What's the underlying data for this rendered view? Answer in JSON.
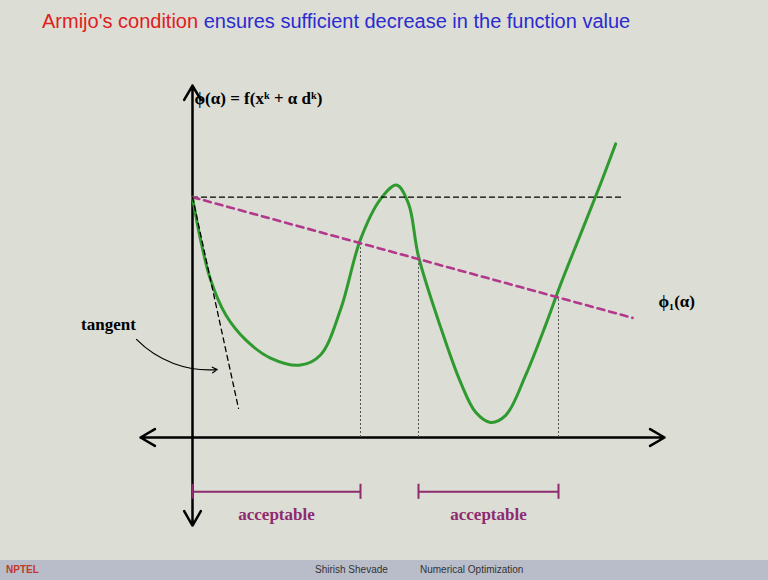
{
  "chart_data": {
    "type": "line",
    "title": "Armijo's condition ensures sufficient decrease in the function value",
    "title_highlight": "Armijo's condition",
    "tick_labels": false,
    "xlim": [
      -1.3,
      11.8
    ],
    "ylim": [
      -3.5,
      14
    ],
    "series": [
      {
        "color": "#2f9a2f",
        "line_style": "solid",
        "x": [
          0,
          0.2,
          0.45,
          0.83,
          1.33,
          1.95,
          2.7,
          3.2,
          3.7,
          4.2,
          4.7,
          5.1,
          5.4,
          5.65,
          6.2,
          6.7,
          7.08,
          7.45,
          7.83,
          8.33,
          8.83,
          9.2,
          9.7,
          10.2,
          10.58
        ],
        "values": [
          9.56,
          7.88,
          6.28,
          4.88,
          3.88,
          3.16,
          2.88,
          3.28,
          5.08,
          7.88,
          9.48,
          10.04,
          9.3,
          7.2,
          4.4,
          2.2,
          1.0,
          0.6,
          0.88,
          2.48,
          4.48,
          6.08,
          8.08,
          10.08,
          11.68
        ]
      },
      {
        "color": "#000000",
        "line_style": "dashed",
        "x": [
          0,
          10.8
        ],
        "values": [
          9.56,
          9.56
        ]
      },
      {
        "color": "#b2388c",
        "line_style": "dashed",
        "x": [
          0,
          11
        ],
        "values": [
          9.56,
          4.76
        ]
      },
      {
        "color": "#000000",
        "line_style": "dashed",
        "x": [
          0,
          1.15
        ],
        "values": [
          9.56,
          1.16
        ]
      }
    ],
    "boundaries": {
      "x": [
        4.2,
        5.65,
        9.15
      ],
      "y": [
        7.73,
        7.1,
        5.57
      ]
    },
    "intervals": [
      {
        "label": "acceptable",
        "x1": 0,
        "x2": 4.2,
        "y": -2.16
      },
      {
        "label": "acceptable",
        "x1": 5.65,
        "x2": 9.15,
        "y": -2.16
      }
    ],
    "annotations": [
      {
        "text": "ϕ(α) = f(xᵏ + α dᵏ)",
        "x": 0.05,
        "y": 13.5
      },
      {
        "text": "tangent",
        "x": -2.1,
        "y": 4.5,
        "arrow_to": [
          0.62,
          2.7
        ]
      },
      {
        "text": "ϕ₁(α)",
        "x": 11.65,
        "y": 5.4
      }
    ],
    "footer": [
      "Shirish Shevade",
      "Numerical Optimization"
    ],
    "logo": "NPTEL"
  }
}
